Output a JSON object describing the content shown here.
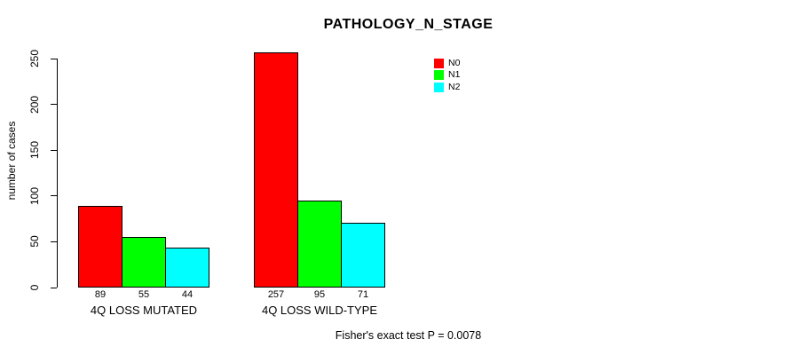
{
  "title": "PATHOLOGY_N_STAGE",
  "annotation": "Fisher's exact test P = 0.0078",
  "y_axis": {
    "label": "number of cases",
    "tick_labels": [
      "0",
      "50",
      "100",
      "150",
      "200",
      "250"
    ]
  },
  "legend": {
    "items": [
      {
        "label": "N0",
        "color": "#FF0000"
      },
      {
        "label": "N1",
        "color": "#00FF00"
      },
      {
        "label": "N2",
        "color": "#00FFFF"
      }
    ]
  },
  "chart_data": {
    "type": "bar",
    "title": "PATHOLOGY_N_STAGE",
    "categories": [
      "4Q LOSS MUTATED",
      "4Q LOSS WILD-TYPE"
    ],
    "series": [
      {
        "name": "N0",
        "color": "#FF0000",
        "values": [
          89,
          257
        ]
      },
      {
        "name": "N1",
        "color": "#00FF00",
        "values": [
          55,
          95
        ]
      },
      {
        "name": "N2",
        "color": "#00FFFF",
        "values": [
          44,
          71
        ]
      }
    ],
    "xlabel": "",
    "ylabel": "number of cases",
    "ylim": [
      0,
      257
    ],
    "y_ticks": [
      0,
      50,
      100,
      150,
      200,
      250
    ],
    "bar_value_labels": true,
    "grid": false,
    "legend_position": "top-right-inside",
    "annotation": "Fisher's exact test P = 0.0078"
  }
}
